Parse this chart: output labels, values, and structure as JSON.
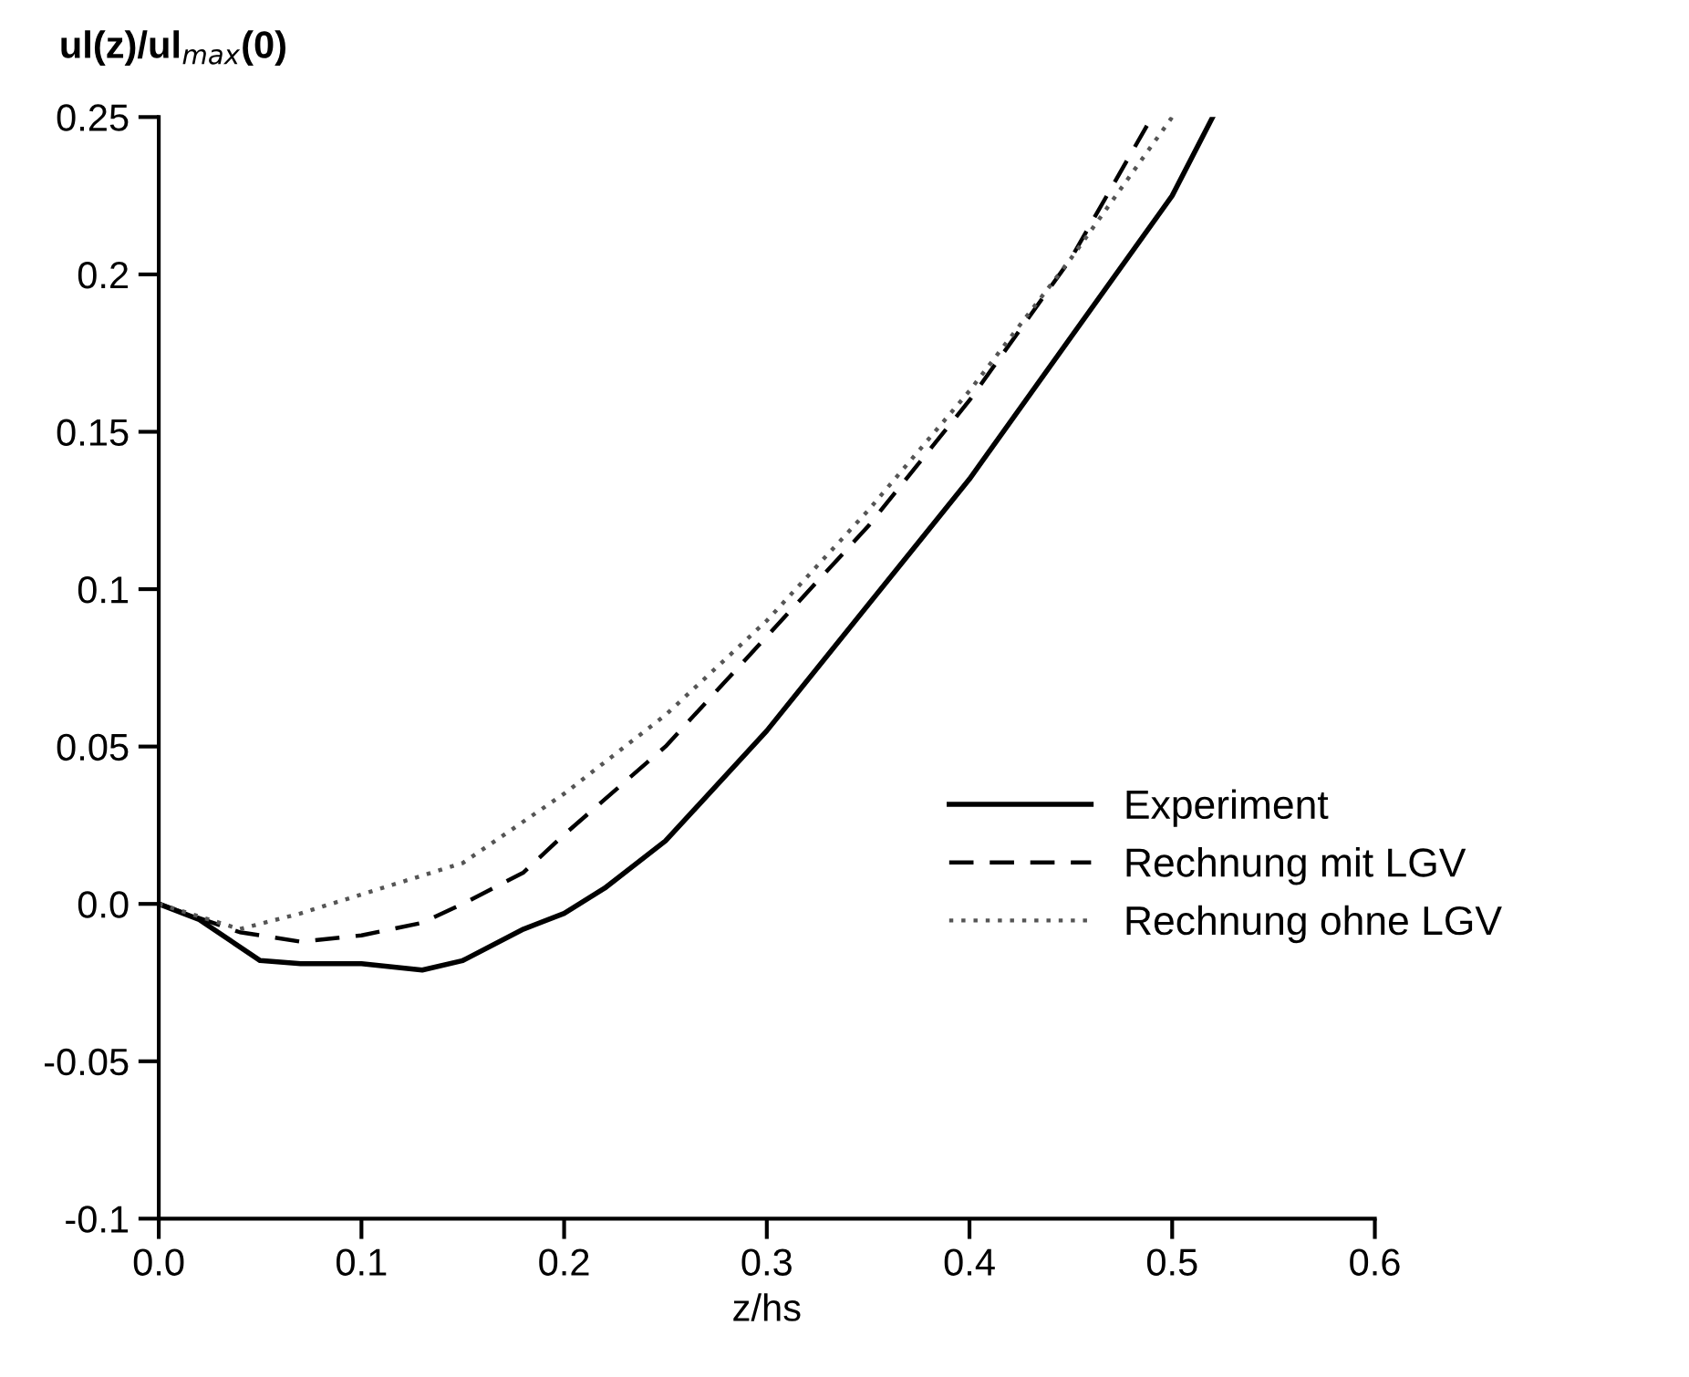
{
  "chart_data": {
    "type": "line",
    "xlabel": "z/hs",
    "ylabel": "ul(z)/ul$_{max}$(0)",
    "xlim": [
      0,
      0.6
    ],
    "ylim": [
      -0.1,
      0.25
    ],
    "xticks": [
      {
        "value": 0,
        "label": "0.0"
      },
      0.1,
      0.2,
      0.3,
      0.4,
      0.5,
      0.6
    ],
    "yticks": [
      -0.1,
      -0.05,
      {
        "value": 0,
        "label": "0.0"
      },
      0.05,
      0.1,
      0.15,
      0.2,
      0.25
    ],
    "grid": false,
    "legend": "right",
    "marker": "none",
    "series": [
      {
        "name": "Experiment",
        "color": "#000000",
        "line_style": "solid",
        "x": [
          0,
          0.02,
          0.05,
          0.07,
          0.1,
          0.13,
          0.15,
          0.18,
          0.2,
          0.22,
          0.25,
          0.3,
          0.35,
          0.4,
          0.45,
          0.5,
          0.52
        ],
        "values": [
          0,
          -0.005,
          -0.018,
          -0.019,
          -0.019,
          -0.021,
          -0.018,
          -0.008,
          -0.003,
          0.005,
          0.02,
          0.055,
          0.095,
          0.135,
          0.18,
          0.225,
          0.25
        ]
      },
      {
        "name": "Rechnung mit LGV",
        "color": "#000000",
        "line_style": "dashed",
        "x": [
          0,
          0.04,
          0.07,
          0.1,
          0.13,
          0.15,
          0.18,
          0.2,
          0.25,
          0.3,
          0.35,
          0.4,
          0.45,
          0.49
        ],
        "values": [
          0,
          -0.009,
          -0.012,
          -0.01,
          -0.006,
          0,
          0.01,
          0.022,
          0.05,
          0.085,
          0.12,
          0.16,
          0.205,
          0.25
        ]
      },
      {
        "name": "Rechnung ohne LGV",
        "color": "#555555",
        "line_style": "dotted",
        "x": [
          0,
          0.04,
          0.07,
          0.1,
          0.15,
          0.2,
          0.25,
          0.3,
          0.35,
          0.4,
          0.45,
          0.5
        ],
        "values": [
          0,
          -0.008,
          -0.003,
          0.003,
          0.013,
          0.035,
          0.06,
          0.09,
          0.125,
          0.163,
          0.205,
          0.25
        ]
      }
    ]
  }
}
